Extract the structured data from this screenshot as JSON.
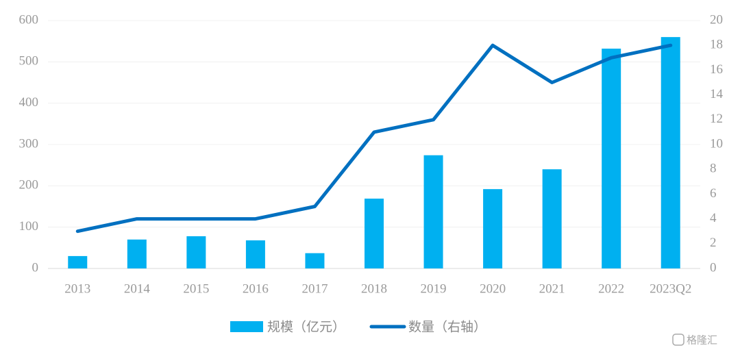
{
  "chart_data": {
    "type": "bar-line",
    "categories": [
      "2013",
      "2014",
      "2015",
      "2016",
      "2017",
      "2018",
      "2019",
      "2020",
      "2021",
      "2022",
      "2023Q2"
    ],
    "series": [
      {
        "name": "规模（亿元）",
        "type": "bar",
        "color": "#00b0f0",
        "values": [
          30,
          70,
          78,
          68,
          37,
          169,
          274,
          192,
          240,
          532,
          560
        ]
      },
      {
        "name": "数量（右轴）",
        "type": "line",
        "axis": "y2",
        "color": "#0070c0",
        "values": [
          3,
          4,
          4,
          4,
          5,
          11,
          12,
          18,
          15,
          17,
          18
        ]
      }
    ],
    "ylim": [
      0,
      600
    ],
    "yticks": [
      0,
      100,
      200,
      300,
      400,
      500,
      600
    ],
    "y2lim": [
      0,
      20
    ],
    "y2ticks": [
      0,
      2,
      4,
      6,
      8,
      10,
      12,
      14,
      16,
      18,
      20
    ],
    "grid": true,
    "legend": "bottom",
    "watermark": "格隆汇"
  }
}
